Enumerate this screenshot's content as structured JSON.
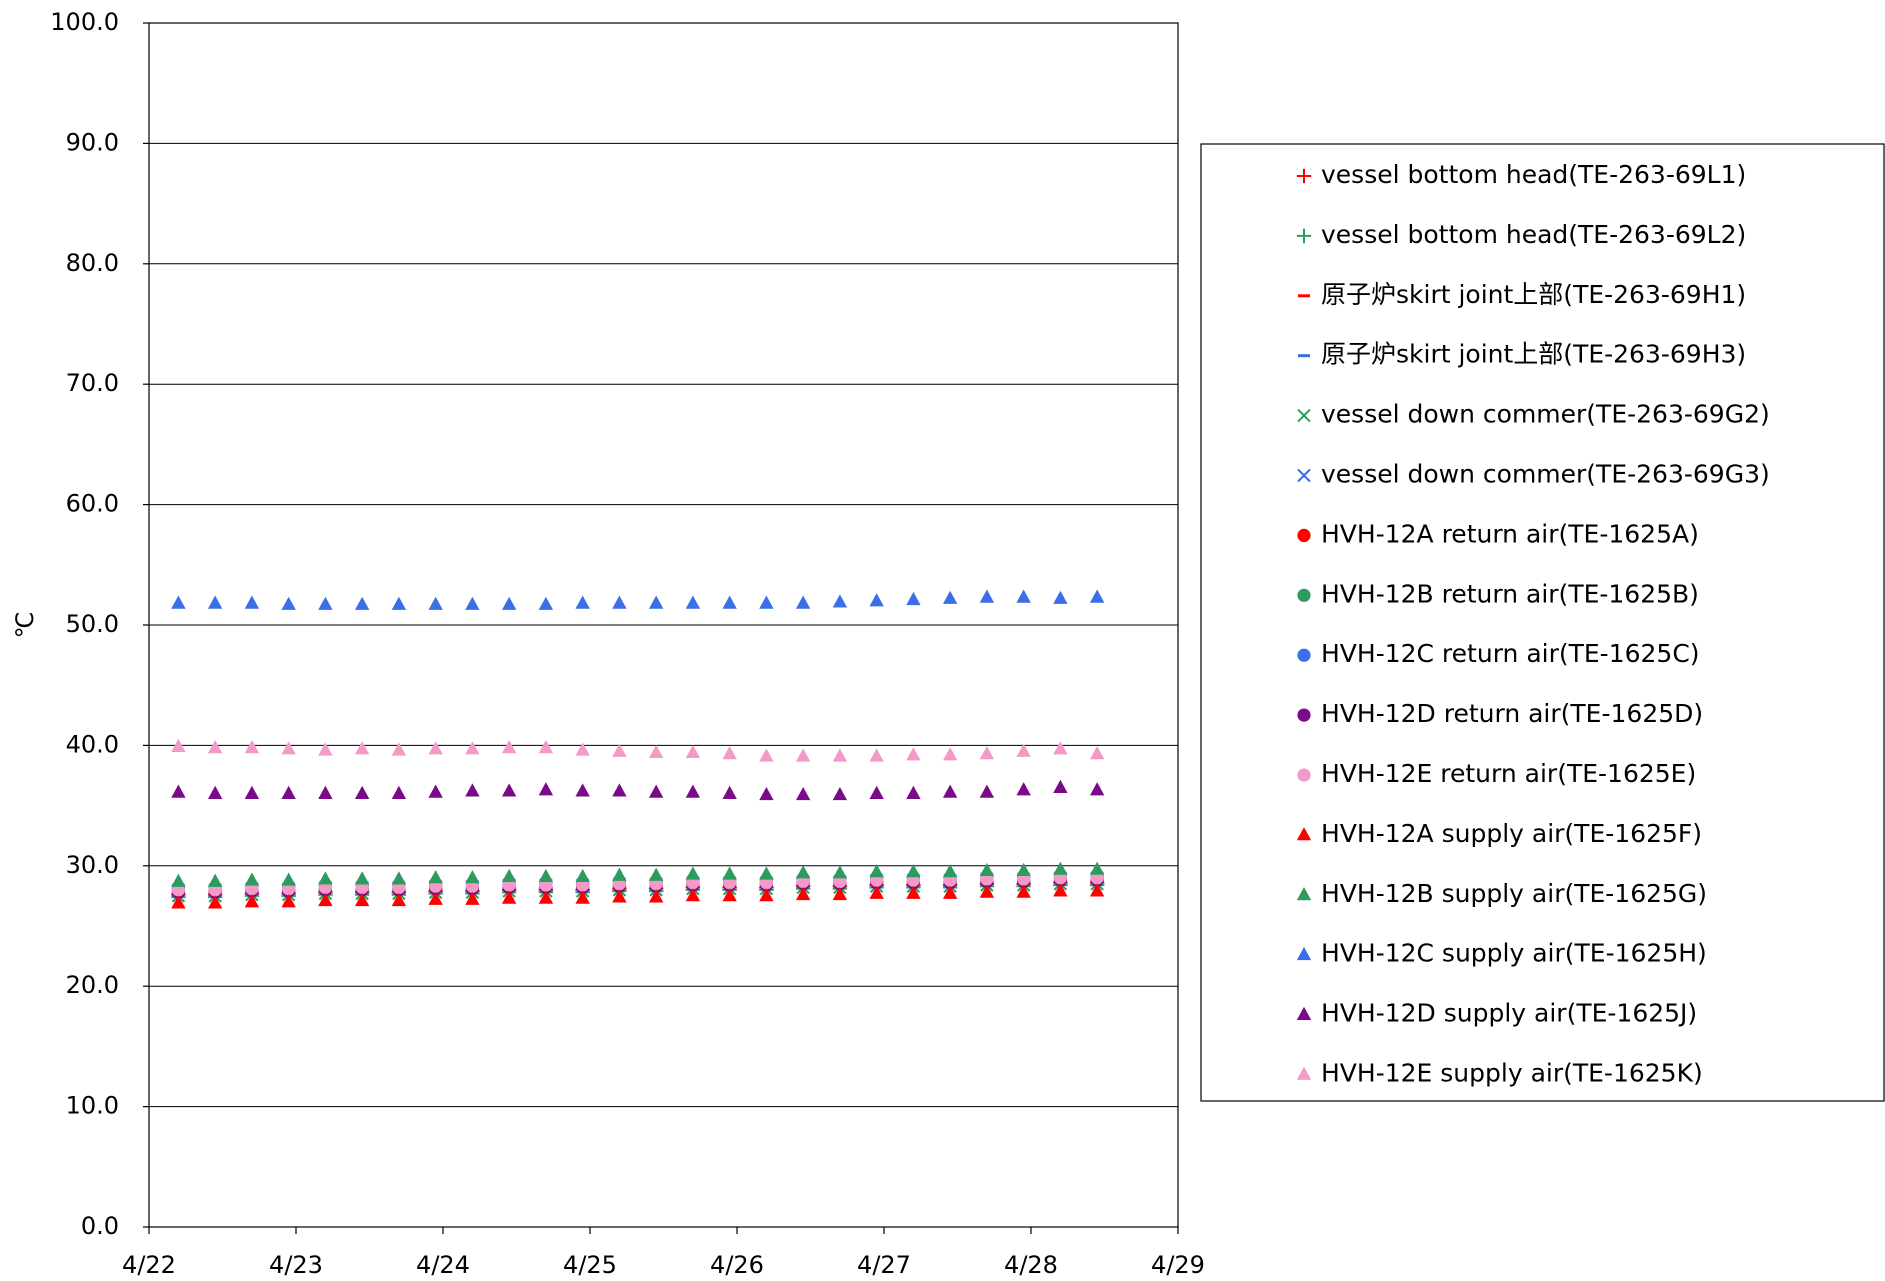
{
  "chart_data": {
    "type": "scatter",
    "y_label": "℃",
    "xlim": [
      0,
      7
    ],
    "xticks": [
      {
        "value": 0,
        "label": "4/22"
      },
      {
        "value": 1,
        "label": "4/23"
      },
      {
        "value": 2,
        "label": "4/24"
      },
      {
        "value": 3,
        "label": "4/25"
      },
      {
        "value": 4,
        "label": "4/26"
      },
      {
        "value": 5,
        "label": "4/27"
      },
      {
        "value": 6,
        "label": "4/28"
      },
      {
        "value": 7,
        "label": "4/29"
      }
    ],
    "ylim": [
      0,
      100
    ],
    "yticks": [
      {
        "value": 0,
        "label": "0.0"
      },
      {
        "value": 10,
        "label": "10.0"
      },
      {
        "value": 20,
        "label": "20.0"
      },
      {
        "value": 30,
        "label": "30.0"
      },
      {
        "value": 40,
        "label": "40.0"
      },
      {
        "value": 50,
        "label": "50.0"
      },
      {
        "value": 60,
        "label": "60.0"
      },
      {
        "value": 70,
        "label": "70.0"
      },
      {
        "value": 80,
        "label": "80.0"
      },
      {
        "value": 90,
        "label": "90.0"
      },
      {
        "value": 100,
        "label": "100.0"
      }
    ],
    "grid": true,
    "legend": "right",
    "x": [
      0.2,
      0.45,
      0.7,
      0.95,
      1.2,
      1.45,
      1.7,
      1.95,
      2.2,
      2.45,
      2.7,
      2.95,
      3.2,
      3.45,
      3.7,
      3.95,
      4.2,
      4.45,
      4.7,
      4.95,
      5.2,
      5.45,
      5.7,
      5.95,
      6.2,
      6.45
    ],
    "series": [
      {
        "name": "vessel bottom head(TE-263-69L1)",
        "color": "#ff0000",
        "marker": "plus",
        "values": [
          27.6,
          27.6,
          27.7,
          27.7,
          27.8,
          27.8,
          27.8,
          27.9,
          27.9,
          28.0,
          28.0,
          28.0,
          28.1,
          28.1,
          28.2,
          28.2,
          28.2,
          28.3,
          28.3,
          28.4,
          28.4,
          28.4,
          28.5,
          28.5,
          28.6,
          28.6
        ]
      },
      {
        "name": "vessel bottom head(TE-263-69L2)",
        "color": "#2e9b5e",
        "marker": "plus",
        "values": [
          27.4,
          27.4,
          27.5,
          27.5,
          27.6,
          27.6,
          27.6,
          27.7,
          27.7,
          27.8,
          27.8,
          27.8,
          27.9,
          27.9,
          28.0,
          28.0,
          28.0,
          28.1,
          28.1,
          28.2,
          28.2,
          28.2,
          28.3,
          28.3,
          28.4,
          28.4
        ]
      },
      {
        "name": "原子炉skirt joint上部(TE-263-69H1)",
        "color": "#ff0000",
        "marker": "dash",
        "values": [
          27.8,
          27.8,
          27.9,
          27.9,
          28.0,
          28.0,
          28.0,
          28.1,
          28.1,
          28.2,
          28.2,
          28.2,
          28.3,
          28.3,
          28.4,
          28.4,
          28.4,
          28.5,
          28.5,
          28.6,
          28.6,
          28.6,
          28.7,
          28.7,
          28.8,
          28.8
        ]
      },
      {
        "name": "原子炉skirt joint上部(TE-263-69H3)",
        "color": "#3a6fe8",
        "marker": "dash",
        "values": [
          28.2,
          28.2,
          28.3,
          28.3,
          28.4,
          28.4,
          28.4,
          28.5,
          28.5,
          28.6,
          28.6,
          28.6,
          28.7,
          28.7,
          28.8,
          28.8,
          28.8,
          28.9,
          28.9,
          29.0,
          29.0,
          29.0,
          29.1,
          29.1,
          29.2,
          29.2
        ]
      },
      {
        "name": "vessel down commer(TE-263-69G2)",
        "color": "#2e9b5e",
        "marker": "cross",
        "values": [
          27.5,
          27.5,
          27.6,
          27.6,
          27.7,
          27.7,
          27.7,
          27.8,
          27.8,
          27.9,
          27.9,
          27.9,
          28.0,
          28.0,
          28.1,
          28.1,
          28.1,
          28.2,
          28.2,
          28.3,
          28.3,
          28.3,
          28.4,
          28.4,
          28.5,
          28.5
        ]
      },
      {
        "name": "vessel down commer(TE-263-69G3)",
        "color": "#3a6fe8",
        "marker": "cross",
        "values": [
          28.0,
          28.0,
          28.1,
          28.1,
          28.2,
          28.2,
          28.2,
          28.3,
          28.3,
          28.4,
          28.4,
          28.4,
          28.5,
          28.5,
          28.6,
          28.6,
          28.6,
          28.7,
          28.7,
          28.8,
          28.8,
          28.8,
          28.9,
          28.9,
          29.0,
          29.0
        ]
      },
      {
        "name": "HVH-12A return air(TE-1625A)",
        "color": "#ff0000",
        "marker": "circle",
        "values": [
          27.9,
          27.9,
          28.0,
          28.0,
          28.1,
          28.1,
          28.1,
          28.2,
          28.2,
          28.3,
          28.3,
          28.3,
          28.4,
          28.4,
          28.5,
          28.5,
          28.5,
          28.6,
          28.6,
          28.7,
          28.7,
          28.7,
          28.8,
          28.8,
          28.9,
          28.9
        ]
      },
      {
        "name": "HVH-12B return air(TE-1625B)",
        "color": "#2e9b5e",
        "marker": "circle",
        "values": [
          28.2,
          28.2,
          28.3,
          28.3,
          28.4,
          28.4,
          28.4,
          28.5,
          28.5,
          28.6,
          28.6,
          28.6,
          28.7,
          28.7,
          28.8,
          28.8,
          28.8,
          28.9,
          28.9,
          29.0,
          29.0,
          29.0,
          29.1,
          29.1,
          29.2,
          29.2
        ]
      },
      {
        "name": "HVH-12C return air(TE-1625C)",
        "color": "#3a6fe8",
        "marker": "circle",
        "values": [
          28.1,
          28.1,
          28.2,
          28.2,
          28.3,
          28.3,
          28.3,
          28.4,
          28.4,
          28.5,
          28.5,
          28.5,
          28.6,
          28.6,
          28.7,
          28.7,
          28.7,
          28.8,
          28.8,
          28.9,
          28.9,
          28.9,
          29.0,
          29.0,
          29.1,
          29.1
        ]
      },
      {
        "name": "HVH-12D return air(TE-1625D)",
        "color": "#7b0a8a",
        "marker": "circle",
        "values": [
          27.8,
          27.8,
          27.9,
          27.9,
          28.0,
          28.0,
          28.0,
          28.1,
          28.1,
          28.2,
          28.2,
          28.2,
          28.3,
          28.3,
          28.4,
          28.4,
          28.4,
          28.5,
          28.5,
          28.6,
          28.6,
          28.6,
          28.7,
          28.7,
          28.8,
          28.8
        ]
      },
      {
        "name": "HVH-12E return air(TE-1625E)",
        "color": "#f49ac8",
        "marker": "circle",
        "values": [
          28.0,
          28.0,
          28.1,
          28.1,
          28.2,
          28.2,
          28.2,
          28.3,
          28.3,
          28.4,
          28.4,
          28.4,
          28.5,
          28.5,
          28.6,
          28.6,
          28.6,
          28.7,
          28.7,
          28.8,
          28.8,
          28.8,
          28.9,
          28.9,
          29.0,
          29.0
        ]
      },
      {
        "name": "HVH-12A supply air(TE-1625F)",
        "color": "#ff0000",
        "marker": "triangle",
        "values": [
          26.9,
          26.9,
          27.0,
          27.0,
          27.1,
          27.1,
          27.1,
          27.2,
          27.2,
          27.3,
          27.3,
          27.3,
          27.4,
          27.4,
          27.5,
          27.5,
          27.5,
          27.6,
          27.6,
          27.7,
          27.7,
          27.7,
          27.8,
          27.8,
          27.9,
          27.9
        ]
      },
      {
        "name": "HVH-12B supply air(TE-1625G)",
        "color": "#2e9b5e",
        "marker": "triangle",
        "values": [
          28.7,
          28.7,
          28.8,
          28.8,
          28.9,
          28.9,
          28.9,
          29.0,
          29.0,
          29.1,
          29.1,
          29.1,
          29.2,
          29.2,
          29.3,
          29.3,
          29.3,
          29.4,
          29.4,
          29.5,
          29.5,
          29.5,
          29.6,
          29.6,
          29.7,
          29.7
        ]
      },
      {
        "name": "HVH-12C supply air(TE-1625H)",
        "color": "#3a6fe8",
        "marker": "triangle",
        "values": [
          51.8,
          51.8,
          51.8,
          51.7,
          51.7,
          51.7,
          51.7,
          51.7,
          51.7,
          51.7,
          51.7,
          51.8,
          51.8,
          51.8,
          51.8,
          51.8,
          51.8,
          51.8,
          51.9,
          52.0,
          52.1,
          52.2,
          52.3,
          52.3,
          52.2,
          52.3
        ]
      },
      {
        "name": "HVH-12D supply air(TE-1625J)",
        "color": "#7b0a8a",
        "marker": "triangle",
        "values": [
          36.1,
          36.0,
          36.0,
          36.0,
          36.0,
          36.0,
          36.0,
          36.1,
          36.2,
          36.2,
          36.3,
          36.2,
          36.2,
          36.1,
          36.1,
          36.0,
          35.9,
          35.9,
          35.9,
          36.0,
          36.0,
          36.1,
          36.1,
          36.3,
          36.5,
          36.3
        ]
      },
      {
        "name": "HVH-12E supply air(TE-1625K)",
        "color": "#f49ac8",
        "marker": "triangle",
        "values": [
          39.9,
          39.8,
          39.8,
          39.7,
          39.6,
          39.7,
          39.6,
          39.7,
          39.7,
          39.8,
          39.8,
          39.6,
          39.5,
          39.4,
          39.4,
          39.3,
          39.1,
          39.1,
          39.1,
          39.1,
          39.2,
          39.2,
          39.3,
          39.5,
          39.7,
          39.3
        ]
      }
    ]
  }
}
